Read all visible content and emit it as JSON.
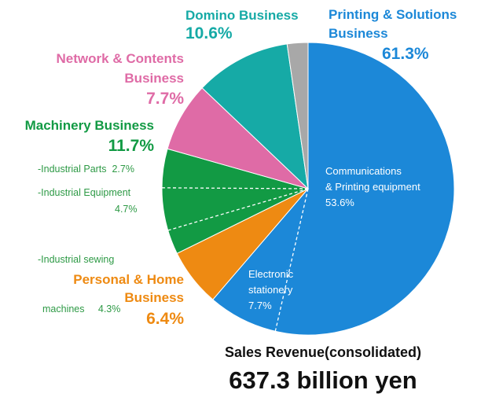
{
  "chart_data": {
    "type": "pie",
    "slices": [
      {
        "name": "Printing & Solutions Business",
        "value": 61.3,
        "color": "#1c88d8",
        "label_lines": [
          "Printing & Solutions",
          "Business"
        ],
        "pct_label": "61.3%"
      },
      {
        "name": "Personal & Home Business",
        "value": 6.4,
        "color": "#ee8a12",
        "label_lines": [
          "Personal & Home",
          "Business"
        ],
        "pct_label": "6.4%"
      },
      {
        "name": "Machinery Business",
        "value": 11.7,
        "color": "#129a44",
        "label_lines": [
          "Machinery Business"
        ],
        "pct_label": "11.7%"
      },
      {
        "name": "Network & Contents Business",
        "value": 7.7,
        "color": "#df6ba6",
        "label_lines": [
          "Network & Contents",
          "Business"
        ],
        "pct_label": "7.7%"
      },
      {
        "name": "Domino Business",
        "value": 10.6,
        "color": "#16aaa6",
        "label_lines": [
          "Domino Business"
        ],
        "pct_label": "10.6%"
      },
      {
        "name": "Other",
        "value": 2.3,
        "color": "#a8a8a8"
      }
    ],
    "sub_segments": {
      "Printing & Solutions Business": [
        {
          "name": "Communications & Printing equipment",
          "value": 53.6,
          "label_lines": [
            "Communications",
            "& Printing equipment",
            "53.6%"
          ]
        },
        {
          "name": "Electronic stationery",
          "value": 7.7,
          "label_lines": [
            "Electronic",
            "stationery",
            "7.7%"
          ]
        }
      ],
      "Machinery Business": [
        {
          "name": "Industrial Parts",
          "value": 2.7,
          "label": "-Industrial Parts  2.7%"
        },
        {
          "name": "Industrial Equipment",
          "value": 4.7,
          "label_lines": [
            "-Industrial Equipment",
            "4.7%"
          ]
        },
        {
          "name": "Industrial sewing machines",
          "value": 4.3,
          "label_lines": [
            "-Industrial sewing",
            "machines     4.3%"
          ]
        }
      ]
    }
  },
  "footer": {
    "subtitle": "Sales Revenue(consolidated)",
    "total": "637.3 billion yen"
  },
  "colors": {
    "printing": "#1c88d8",
    "personal": "#ee8a12",
    "machinery": "#129a44",
    "network": "#df6ba6",
    "domino": "#16aaa6",
    "other": "#a8a8a8",
    "footer_text": "#111111"
  }
}
